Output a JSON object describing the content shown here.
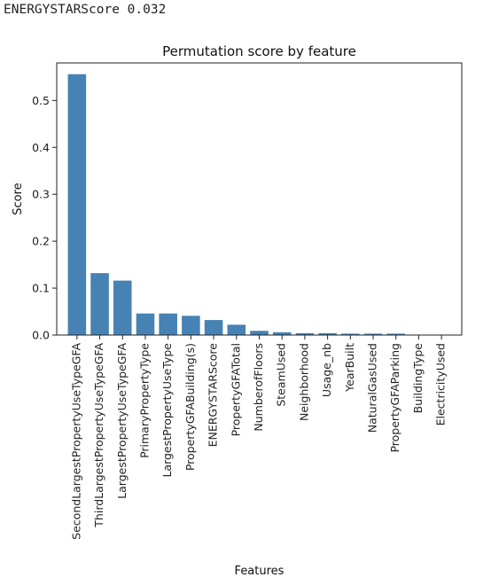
{
  "console": {
    "output_line": "ENERGYSTARScore 0.032"
  },
  "chart_data": {
    "type": "bar",
    "title": "Permutation score by feature",
    "xlabel": "Features",
    "ylabel": "Score",
    "ylim": [
      0,
      0.58
    ],
    "yticks": [
      0.0,
      0.1,
      0.2,
      0.3,
      0.4,
      0.5
    ],
    "ytick_labels": [
      "0.0",
      "0.1",
      "0.2",
      "0.3",
      "0.4",
      "0.5"
    ],
    "grid": false,
    "bar_color": "#4682b4",
    "categories": [
      "SecondLargestPropertyUseTypeGFA",
      "ThirdLargestPropertyUseTypeGFA",
      "LargestPropertyUseTypeGFA",
      "PrimaryPropertyType",
      "LargestPropertyUseType",
      "PropertyGFABuilding(s)",
      "ENERGYSTARScore",
      "PropertyGFATotal",
      "NumberofFloors",
      "SteamUsed",
      "Neighborhood",
      "Usage_nb",
      "YearBuilt",
      "NaturalGasUsed",
      "PropertyGFAParking",
      "BuildingType",
      "ElectricityUsed"
    ],
    "values": [
      0.556,
      0.132,
      0.116,
      0.046,
      0.046,
      0.041,
      0.032,
      0.022,
      0.009,
      0.006,
      0.004,
      0.004,
      0.003,
      0.003,
      0.003,
      0.0005,
      0.0003
    ]
  }
}
